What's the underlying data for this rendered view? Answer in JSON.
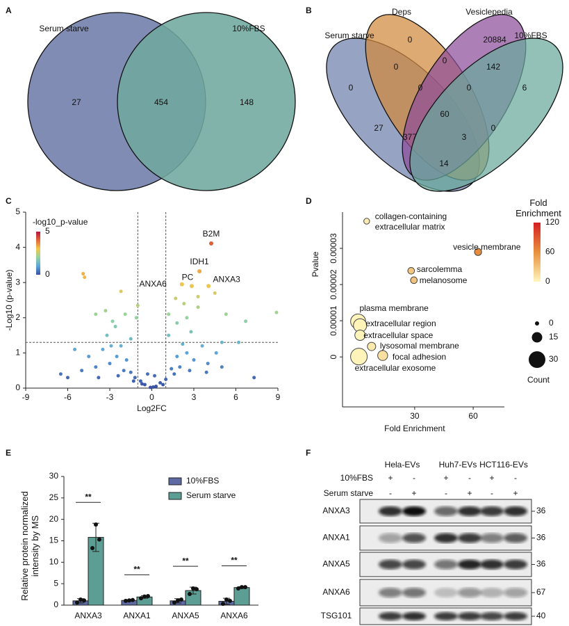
{
  "chart_data": [
    {
      "type": "venn",
      "panel_label": "A",
      "sets": [
        {
          "name": "Serum starve",
          "color": "#6e7ca9"
        },
        {
          "name": "10%FBS",
          "color": "#6fa99f"
        }
      ],
      "values": [
        27,
        454,
        148
      ]
    },
    {
      "type": "venn",
      "panel_label": "B",
      "sets": [
        {
          "name": "Serum starve",
          "color": "#6f7fab"
        },
        {
          "name": "Deps",
          "color": "#d1893d"
        },
        {
          "name": "Vesiclepedia",
          "color": "#8e4d9b"
        },
        {
          "name": "10%FBS",
          "color": "#6aa99c"
        }
      ],
      "values": [
        0,
        20884,
        0,
        6,
        0,
        0,
        142,
        0,
        0,
        60,
        27,
        377,
        3,
        0,
        14
      ]
    },
    {
      "type": "scatter",
      "panel_label": "C",
      "x_label": "Log2FC",
      "y_label": "-Log10 (p-value)",
      "xlim": [
        -9,
        9
      ],
      "xticks": [
        -9,
        -6,
        -3,
        0,
        3,
        6,
        9
      ],
      "ylim": [
        0,
        5
      ],
      "yticks": [
        0,
        1,
        2,
        3,
        4,
        5
      ],
      "threshold_x": [
        -1,
        1
      ],
      "threshold_y": 1.3,
      "colorbar": {
        "title": "-log10_p-value",
        "range": [
          0,
          5
        ],
        "ticks": [
          0,
          5
        ]
      },
      "x": [
        -0.5,
        0.3,
        -1.2,
        1.0,
        0.6,
        -0.8,
        -2,
        2,
        -1.5,
        1.6,
        -3,
        3,
        -2.5,
        2.5,
        -4,
        4,
        -3.5,
        3.6,
        -1.8,
        1.8,
        -0.3,
        0.2,
        -5,
        5,
        -6,
        7.3,
        -4.5,
        4.6,
        -2.2,
        2.2,
        -1.5,
        1.2,
        -3.2,
        2.8,
        -2.8,
        1.8,
        -1.9,
        2.5,
        -3.3,
        3.3,
        -1.1,
        1.2,
        -2.6,
        -4,
        6.7,
        8.9,
        5.3,
        -1,
        2.3,
        -2.2,
        1.7,
        4.5,
        3.3,
        -4.9,
        -4.8,
        -2.9,
        5,
        6.2,
        -5.5,
        -6.5,
        -0.1,
        0.1,
        -0.7,
        0.8,
        -1.3,
        1.4,
        -2.4,
        2.7,
        -3.8,
        3.9
      ],
      "y": [
        0.1,
        0.05,
        0.3,
        0.25,
        0.15,
        0.2,
        0.5,
        0.6,
        0.45,
        0.4,
        0.7,
        0.8,
        0.9,
        1.0,
        0.6,
        0.7,
        1.1,
        1.2,
        0.8,
        0.9,
        0.4,
        0.35,
        0.5,
        0.6,
        0.3,
        0.3,
        0.9,
        1.0,
        1.2,
        1.25,
        1.4,
        1.5,
        1.5,
        1.6,
        1.9,
        1.85,
        2.1,
        2.0,
        2.2,
        2.3,
        2.0,
        2.1,
        1.75,
        2.1,
        1.9,
        2.15,
        2.1,
        2.35,
        2.4,
        2.75,
        2.55,
        2.7,
        2.6,
        3.25,
        3.15,
        1.2,
        1.3,
        1.3,
        1.1,
        0.4,
        0.02,
        0.03,
        0.12,
        0.1,
        0.2,
        0.55,
        0.35,
        0.5,
        0.3,
        0.45
      ],
      "labeled_points": {
        "labels": [
          "B2M",
          "IDH1",
          "PC",
          "ANXA6",
          "ANXA3"
        ],
        "x": [
          4.24,
          3.4,
          2.85,
          2.15,
          4.05
        ],
        "y": [
          4.11,
          3.32,
          2.9,
          2.95,
          2.9
        ]
      }
    },
    {
      "type": "bubble",
      "panel_label": "D",
      "x_label": "Fold Enrichment",
      "y_label": "Pvalue",
      "xlim": [
        -7,
        76
      ],
      "xticks": [
        30,
        60
      ],
      "ylim": [
        -1.38e-05,
        4e-05
      ],
      "yticks": [
        0,
        1e-05,
        2e-05,
        3e-05
      ],
      "labels": [
        "collagen-containing extracellular matrix",
        "vesicle membrane",
        "sarcolemma",
        "melanosome",
        "plasma membrane",
        "extracellular region",
        "extracellular space",
        "lysosomal membrane",
        "focal adhesion",
        "extracellular exosome"
      ],
      "x": [
        5.4,
        62.5,
        28.2,
        29.6,
        1,
        2,
        2,
        7.9,
        13.6,
        1.4
      ],
      "y": [
        3.75e-05,
        2.9e-05,
        2.38e-05,
        2.12e-05,
        9.8e-06,
        8.7e-06,
        6e-06,
        2.9e-06,
        4e-07,
        1e-07
      ],
      "sizes": [
        4,
        7,
        6,
        6,
        26,
        22,
        15,
        10,
        14,
        30
      ],
      "colorbar": {
        "title": "Fold Enrichment",
        "range": [
          0,
          120
        ],
        "ticks": [
          0,
          60,
          120
        ]
      },
      "size_legend": {
        "title": "Count",
        "values": [
          0,
          15,
          30
        ]
      }
    },
    {
      "type": "bar",
      "panel_label": "E",
      "y_label": "Relative protein normalized intensity by MS",
      "categories": [
        "ANXA3",
        "ANXA1",
        "ANXA5",
        "ANXA6"
      ],
      "ylim": [
        0,
        30
      ],
      "yticks": [
        0,
        5,
        10,
        15,
        20,
        25,
        30
      ],
      "series": [
        {
          "name": "10%FBS",
          "color": "#5d6aa3",
          "values": [
            1.0,
            1.1,
            1.0,
            0.9
          ],
          "errors": [
            0.5,
            0.1,
            0.5,
            0.7
          ],
          "replicates": [
            [
              0.6,
              1.3,
              1.1
            ],
            [
              1.0,
              1.1,
              1.2
            ],
            [
              0.6,
              1.1,
              1.3
            ],
            [
              0.3,
              1.3,
              1.0
            ]
          ]
        },
        {
          "name": "Serum starve",
          "color": "#5c9e93",
          "values": [
            15.8,
            1.9,
            3.4,
            4.1
          ],
          "errors": [
            3.3,
            0.3,
            0.8,
            0.2
          ],
          "replicates": [
            [
              13.3,
              18.8,
              15.3
            ],
            [
              1.6,
              2.0,
              2.1
            ],
            [
              2.6,
              3.9,
              3.7
            ],
            [
              3.9,
              4.2,
              4.2
            ]
          ]
        }
      ],
      "significance": [
        "**",
        "**",
        "**",
        "**"
      ]
    },
    {
      "type": "western-blot",
      "panel_label": "F",
      "groups": [
        "Hela-EVs",
        "Huh7-EVs",
        "HCT116-EVs"
      ],
      "conditions": [
        {
          "name": "10%FBS",
          "signs": [
            "+",
            "-",
            "+",
            "-",
            "+",
            "-"
          ]
        },
        {
          "name": "Serum starve",
          "signs": [
            "-",
            "+",
            "-",
            "+",
            "-",
            "+"
          ]
        }
      ],
      "proteins": [
        {
          "name": "ANXA3",
          "mw": 36
        },
        {
          "name": "ANXA1",
          "mw": 36
        },
        {
          "name": "ANXA5",
          "mw": 36
        },
        {
          "name": "ANXA6",
          "mw": 67
        },
        {
          "name": "TSG101",
          "mw": 40
        }
      ]
    }
  ]
}
